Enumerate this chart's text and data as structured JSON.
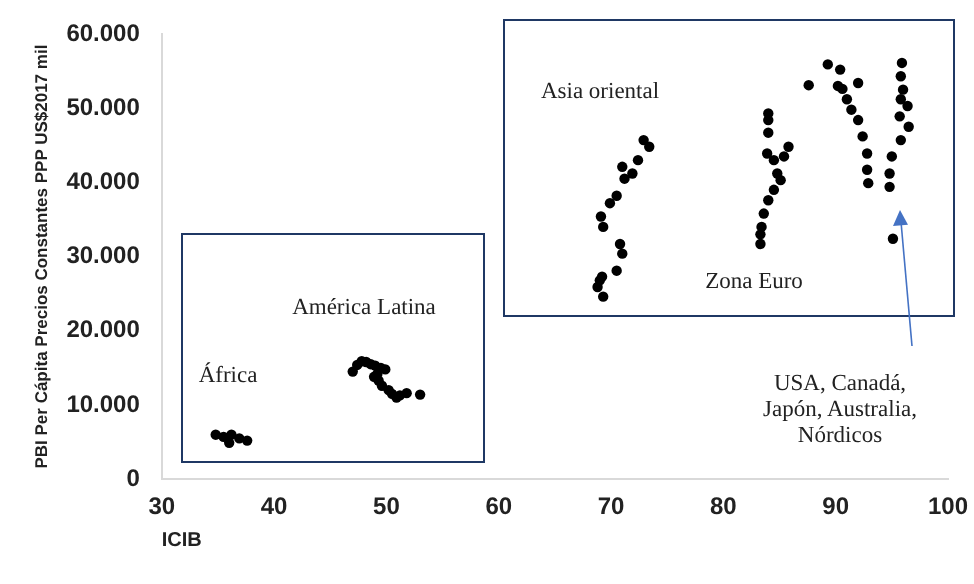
{
  "chart_data": {
    "type": "scatter",
    "xlabel": "ICIB",
    "ylabel": "PBI Per Cápita Precios Constantes PPP US$2017 mil",
    "xlim": [
      30,
      100
    ],
    "xticks": [
      30,
      40,
      50,
      60,
      70,
      80,
      90,
      100
    ],
    "ylim": [
      0,
      60000
    ],
    "yticks": [
      0,
      {
        "value": 10000,
        "label": "10.000"
      },
      {
        "value": 20000,
        "label": "20.000"
      },
      {
        "value": 30000,
        "label": "30.000"
      },
      {
        "value": 40000,
        "label": "40.000"
      },
      {
        "value": 50000,
        "label": "50.000"
      },
      {
        "value": 60000,
        "label": "60.000"
      }
    ],
    "grid": false,
    "legend": false,
    "marker": "circle",
    "series": [
      {
        "color": "#000000",
        "x": [
          34.8,
          35.5,
          36.2,
          36.9,
          37.6,
          36.0,
          47.0,
          47.4,
          47.8,
          48.2,
          48.6,
          49.0,
          49.2,
          49.3,
          49.6,
          49.9,
          50.2,
          50.5,
          50.9,
          51.2,
          51.8,
          53.0,
          49.5,
          48.9,
          69.0,
          69.2,
          70.5,
          71.0,
          70.8,
          69.3,
          69.1,
          69.9,
          70.5,
          71.2,
          71.0,
          72.4,
          72.9,
          73.4,
          71.9,
          68.8,
          69.3,
          83.3,
          83.4,
          83.6,
          84.0,
          84.5,
          84.8,
          84.5,
          85.4,
          85.8,
          84.0,
          84.0,
          84.0,
          85.1,
          83.9,
          83.3,
          87.6,
          89.3,
          90.4,
          90.2,
          91.0,
          91.4,
          92.0,
          92.4,
          92.0,
          92.8,
          92.8,
          92.9,
          95.9,
          95.8,
          96.0,
          96.4,
          95.8,
          96.5,
          95.8,
          95.0,
          94.8,
          94.8,
          95.1,
          95.7,
          90.6
        ],
        "values": [
          6000,
          5700,
          6000,
          5500,
          5200,
          4900,
          14500,
          15400,
          15900,
          15800,
          15500,
          15300,
          14200,
          13300,
          12600,
          14800,
          12000,
          11500,
          11000,
          11300,
          11600,
          11400,
          15000,
          13800,
          26800,
          27300,
          28100,
          30400,
          31700,
          34000,
          35400,
          37200,
          38200,
          40500,
          42100,
          43000,
          45700,
          44800,
          41200,
          25900,
          24600,
          31700,
          34000,
          35800,
          37600,
          39000,
          41200,
          43000,
          43500,
          44800,
          46700,
          48400,
          49300,
          40300,
          43900,
          33000,
          53100,
          55900,
          55200,
          53000,
          51200,
          49800,
          48400,
          46200,
          53400,
          43900,
          41700,
          39900,
          56100,
          54300,
          52500,
          50300,
          51200,
          47500,
          45700,
          43500,
          41200,
          39400,
          32400,
          48900,
          52600
        ]
      }
    ],
    "annotations": [
      "África",
      "América Latina",
      "Asia oriental",
      "Zona Euro",
      "USA, Canadá,\nJapón, Australia,\nNórdicos"
    ]
  }
}
